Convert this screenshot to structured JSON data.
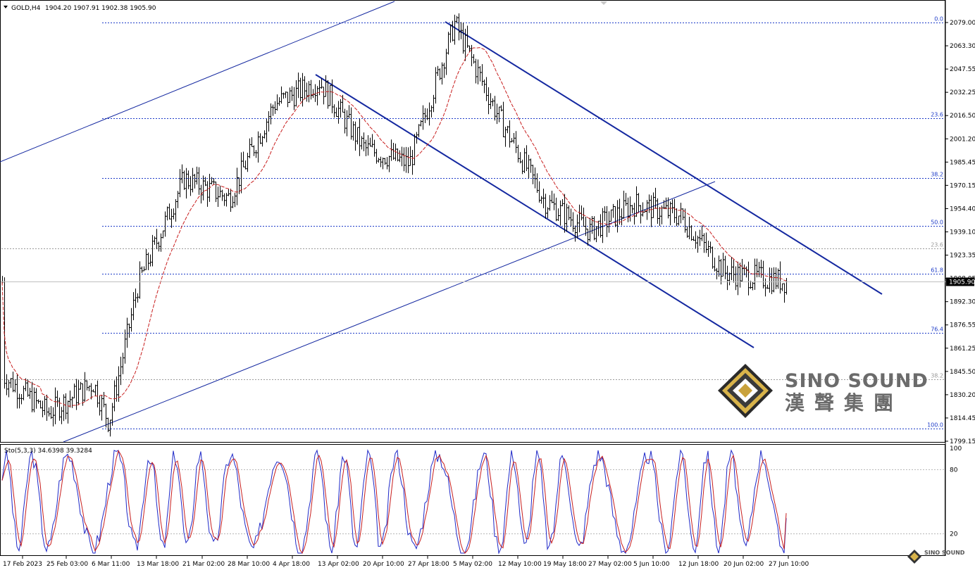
{
  "header": {
    "symbol": "GOLD,H4",
    "ohlc": "1904.20 1907.91 1902.38 1905.90"
  },
  "indicator": {
    "label": "Sto(5,3,3) 34.6398 39.3284",
    "axis_ticks": [
      "100",
      "80",
      "20"
    ]
  },
  "price_axis": {
    "ticks": [
      "2079.00",
      "2063.30",
      "2047.55",
      "2032.25",
      "2016.50",
      "2001.20",
      "1985.45",
      "1970.15",
      "1954.40",
      "1939.10",
      "1923.35",
      "1908.05",
      "1892.30",
      "1876.55",
      "1861.25",
      "1845.50",
      "1830.20",
      "1814.45",
      "1799.15"
    ],
    "current_price": "1905.90",
    "current_price_color": "#000000"
  },
  "time_axis": {
    "labels": [
      "17 Feb 2023",
      "25 Feb 03:00",
      "6 Mar 11:00",
      "13 Mar 18:00",
      "21 Mar 02:00",
      "28 Mar 10:00",
      "4 Apr 18:00",
      "13 Apr 02:00",
      "20 Apr 10:00",
      "27 Apr 18:00",
      "5 May 02:00",
      "12 May 10:00",
      "19 May 18:00",
      "27 May 02:00",
      "5 Jun 10:00",
      "12 Jun 18:00",
      "20 Jun 02:00",
      "27 Jun 10:00"
    ]
  },
  "fib_upper": {
    "color": "#1e3cc8",
    "levels": [
      {
        "label": "0.0",
        "price": 2079.5
      },
      {
        "label": "23.6",
        "price": 2015.3
      },
      {
        "label": "38.2",
        "price": 1975.5
      },
      {
        "label": "50.0",
        "price": 1943.5
      },
      {
        "label": "61.8",
        "price": 1911.3
      },
      {
        "label": "76.4",
        "price": 1871.6
      },
      {
        "label": "100.0",
        "price": 1807.5
      }
    ]
  },
  "fib_lower": {
    "color": "#9a9a9a",
    "levels": [
      {
        "label": "23.6",
        "price": 1928.2
      },
      {
        "label": "38.2",
        "price": 1840.5
      }
    ]
  },
  "watermark": {
    "brand_en": "SINO SOUND",
    "brand_cn": "漢聲集團",
    "small_brand": "SINO SOUND"
  },
  "colors": {
    "candles": "#000000",
    "moving_average": "#c81e1e",
    "trendlines": "#1428a0",
    "stoch_main": "#1e28c8",
    "stoch_signal": "#c81e1e",
    "grid_dots": "#b4b4b4"
  },
  "chart_data": [
    {
      "type": "candlestick",
      "title": "GOLD,H4",
      "ylim": [
        1799.15,
        2087
      ],
      "x": [
        "17 Feb 2023",
        "25 Feb 03:00",
        "6 Mar 11:00",
        "13 Mar 18:00",
        "21 Mar 02:00",
        "28 Mar 10:00",
        "4 Apr 18:00",
        "13 Apr 02:00",
        "20 Apr 10:00",
        "27 Apr 18:00",
        "5 May 02:00",
        "12 May 10:00",
        "19 May 18:00",
        "27 May 02:00",
        "5 Jun 10:00",
        "12 Jun 18:00",
        "20 Jun 02:00",
        "27 Jun 10:00"
      ],
      "close_path": [
        [
          "17 Feb 2023",
          1842
        ],
        [
          "25 Feb 03:00",
          1818
        ],
        [
          "6 Mar 11:00",
          1838
        ],
        [
          "6 Mar 11:00",
          1812
        ],
        [
          "13 Mar 18:00",
          1905
        ],
        [
          "21 Mar 02:00",
          1975
        ],
        [
          "28 Mar 10:00",
          1962
        ],
        [
          "4 Apr 18:00",
          2025
        ],
        [
          "13 Apr 02:00",
          2040
        ],
        [
          "20 Apr 10:00",
          1995
        ],
        [
          "27 Apr 18:00",
          1985
        ],
        [
          "5 May 02:00",
          2079
        ],
        [
          "12 May 10:00",
          2015
        ],
        [
          "19 May 18:00",
          1960
        ],
        [
          "27 May 02:00",
          1940
        ],
        [
          "5 Jun 10:00",
          1958
        ],
        [
          "12 Jun 18:00",
          1950
        ],
        [
          "20 Jun 02:00",
          1912
        ],
        [
          "27 Jun 10:00",
          1905.9
        ]
      ],
      "last_close": 1905.9
    },
    {
      "type": "line",
      "title": "Sto(5,3,3)",
      "ylim": [
        0,
        100
      ],
      "levels": [
        20,
        80
      ],
      "series": [
        {
          "name": "main",
          "last": 34.6398
        },
        {
          "name": "signal",
          "last": 39.3284
        }
      ]
    }
  ]
}
